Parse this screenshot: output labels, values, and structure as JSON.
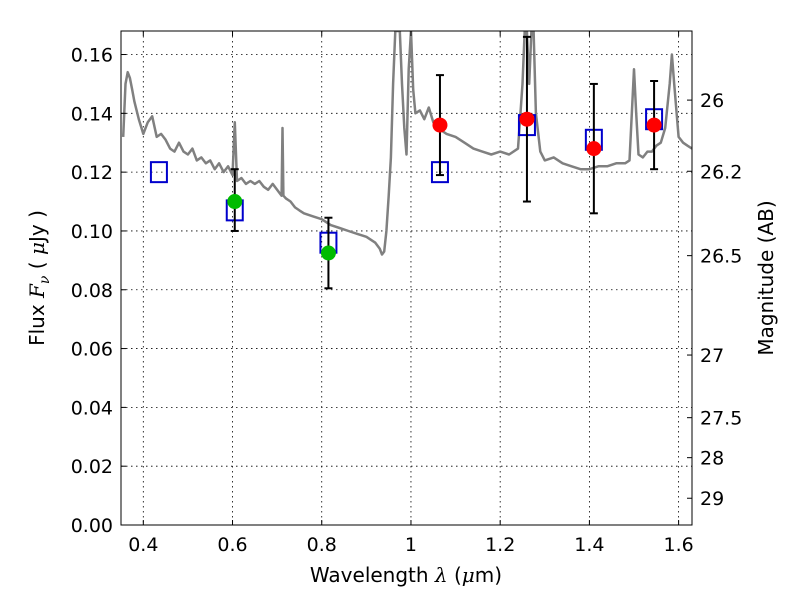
{
  "chart_data": {
    "type": "scatter",
    "xlabel": {
      "prefix": "Wavelength  ",
      "symbol": "λ",
      "suffix": " (",
      "unit_symbol": "μ",
      "unit_rest": "m)"
    },
    "ylabel": {
      "prefix": "Flux  ",
      "symbol": "F",
      "subscript": "ν",
      "mid": "  ( ",
      "unit_symbol": "μ",
      "unit_rest": "Jy )"
    },
    "y2label": "Magnitude (AB)",
    "xlim": [
      0.35,
      1.63
    ],
    "ylim": [
      0.0,
      0.168
    ],
    "x_ticks": [
      {
        "v": 0.4,
        "label": "0.4"
      },
      {
        "v": 0.6,
        "label": "0.6"
      },
      {
        "v": 0.8,
        "label": "0.8"
      },
      {
        "v": 1.0,
        "label": "1"
      },
      {
        "v": 1.2,
        "label": "1.2"
      },
      {
        "v": 1.4,
        "label": "1.4"
      },
      {
        "v": 1.6,
        "label": "1.6"
      }
    ],
    "y_ticks": [
      {
        "v": 0.0,
        "label": "0.00"
      },
      {
        "v": 0.02,
        "label": "0.02"
      },
      {
        "v": 0.04,
        "label": "0.04"
      },
      {
        "v": 0.06,
        "label": "0.06"
      },
      {
        "v": 0.08,
        "label": "0.08"
      },
      {
        "v": 0.1,
        "label": "0.10"
      },
      {
        "v": 0.12,
        "label": "0.12"
      },
      {
        "v": 0.14,
        "label": "0.14"
      },
      {
        "v": 0.16,
        "label": "0.16"
      }
    ],
    "y2_ticks": [
      {
        "flux": 0.1445,
        "label": "26"
      },
      {
        "flux": 0.1203,
        "label": "26.2"
      },
      {
        "flux": 0.0916,
        "label": "26.5"
      },
      {
        "flux": 0.0578,
        "label": "27"
      },
      {
        "flux": 0.0365,
        "label": "27.5"
      },
      {
        "flux": 0.0229,
        "label": "28"
      },
      {
        "flux": 0.0091,
        "label": "29"
      }
    ],
    "grid": true,
    "colors": {
      "model": "#808080",
      "observed_green": "#00bb00",
      "observed_red": "#ff0000",
      "model_box": "#0000cc",
      "errorbar": "#000000"
    },
    "model_spectrum": {
      "x": [
        0.355,
        0.36,
        0.365,
        0.37,
        0.375,
        0.38,
        0.39,
        0.4,
        0.41,
        0.42,
        0.43,
        0.44,
        0.45,
        0.46,
        0.47,
        0.48,
        0.49,
        0.5,
        0.51,
        0.52,
        0.53,
        0.54,
        0.55,
        0.56,
        0.57,
        0.58,
        0.59,
        0.6,
        0.605,
        0.61,
        0.62,
        0.63,
        0.64,
        0.65,
        0.66,
        0.67,
        0.68,
        0.69,
        0.7,
        0.71,
        0.712,
        0.714,
        0.72,
        0.73,
        0.74,
        0.75,
        0.76,
        0.78,
        0.8,
        0.82,
        0.84,
        0.86,
        0.88,
        0.9,
        0.92,
        0.93,
        0.935,
        0.94,
        0.945,
        0.95,
        0.955,
        0.96,
        0.965,
        0.97,
        0.975,
        0.98,
        0.985,
        0.99,
        0.995,
        1.0,
        1.005,
        1.01,
        1.02,
        1.03,
        1.04,
        1.05,
        1.06,
        1.07,
        1.08,
        1.1,
        1.12,
        1.14,
        1.16,
        1.18,
        1.2,
        1.22,
        1.24,
        1.25,
        1.255,
        1.26,
        1.265,
        1.27,
        1.275,
        1.28,
        1.29,
        1.3,
        1.32,
        1.34,
        1.36,
        1.38,
        1.4,
        1.42,
        1.44,
        1.46,
        1.48,
        1.49,
        1.5,
        1.505,
        1.51,
        1.52,
        1.53,
        1.54,
        1.55,
        1.56,
        1.57,
        1.58,
        1.585,
        1.59,
        1.6,
        1.61,
        1.62,
        1.63
      ],
      "y": [
        0.132,
        0.15,
        0.154,
        0.152,
        0.148,
        0.144,
        0.138,
        0.133,
        0.137,
        0.139,
        0.132,
        0.133,
        0.131,
        0.128,
        0.127,
        0.13,
        0.127,
        0.126,
        0.128,
        0.124,
        0.125,
        0.123,
        0.124,
        0.121,
        0.123,
        0.12,
        0.122,
        0.119,
        0.137,
        0.117,
        0.118,
        0.116,
        0.117,
        0.116,
        0.117,
        0.115,
        0.114,
        0.116,
        0.114,
        0.112,
        0.135,
        0.112,
        0.111,
        0.11,
        0.108,
        0.107,
        0.106,
        0.105,
        0.104,
        0.102,
        0.101,
        0.1,
        0.099,
        0.098,
        0.096,
        0.094,
        0.092,
        0.093,
        0.1,
        0.112,
        0.125,
        0.15,
        0.168,
        0.168,
        0.168,
        0.15,
        0.135,
        0.126,
        0.155,
        0.168,
        0.148,
        0.14,
        0.141,
        0.138,
        0.142,
        0.137,
        0.138,
        0.134,
        0.133,
        0.132,
        0.13,
        0.128,
        0.127,
        0.126,
        0.127,
        0.126,
        0.128,
        0.15,
        0.168,
        0.168,
        0.15,
        0.168,
        0.168,
        0.14,
        0.127,
        0.124,
        0.125,
        0.123,
        0.122,
        0.121,
        0.121,
        0.122,
        0.122,
        0.123,
        0.123,
        0.124,
        0.155,
        0.14,
        0.126,
        0.125,
        0.127,
        0.127,
        0.129,
        0.13,
        0.135,
        0.15,
        0.16,
        0.15,
        0.132,
        0.13,
        0.129,
        0.128
      ]
    },
    "observed_green": [
      {
        "x": 0.605,
        "y": 0.11,
        "err_low": 0.01,
        "err_high": 0.011
      },
      {
        "x": 0.815,
        "y": 0.0925,
        "err_low": 0.012,
        "err_high": 0.012
      }
    ],
    "observed_red": [
      {
        "x": 1.065,
        "y": 0.136,
        "err_low": 0.017,
        "err_high": 0.017
      },
      {
        "x": 1.26,
        "y": 0.138,
        "err_low": 0.028,
        "err_high": 0.028
      },
      {
        "x": 1.41,
        "y": 0.128,
        "err_low": 0.022,
        "err_high": 0.022
      },
      {
        "x": 1.545,
        "y": 0.136,
        "err_low": 0.015,
        "err_high": 0.015
      }
    ],
    "model_photometry": [
      {
        "x": 0.435,
        "y": 0.12
      },
      {
        "x": 0.605,
        "y": 0.107
      },
      {
        "x": 0.815,
        "y": 0.096
      },
      {
        "x": 1.065,
        "y": 0.12
      },
      {
        "x": 1.26,
        "y": 0.136
      },
      {
        "x": 1.41,
        "y": 0.131
      },
      {
        "x": 1.545,
        "y": 0.138
      }
    ]
  }
}
